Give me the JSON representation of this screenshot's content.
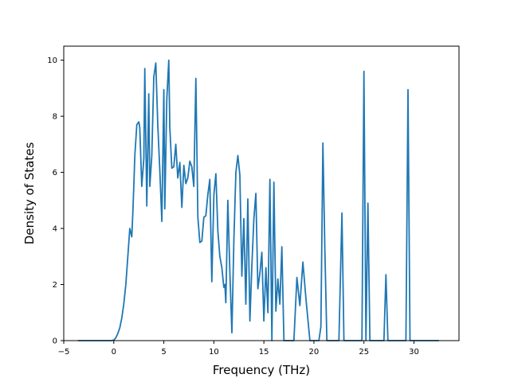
{
  "chart_data": {
    "type": "line",
    "title": "",
    "xlabel": "Frequency (THz)",
    "ylabel": "Density of States",
    "xlim": [
      -5.0,
      34.5
    ],
    "ylim": [
      0,
      10.5
    ],
    "xticks": [
      -5,
      0,
      5,
      10,
      15,
      20,
      25,
      30
    ],
    "xtick_labels": [
      "−5",
      "0",
      "5",
      "10",
      "15",
      "20",
      "25",
      "30"
    ],
    "yticks": [
      0,
      2,
      4,
      6,
      8,
      10
    ],
    "ytick_labels": [
      "0",
      "2",
      "4",
      "6",
      "8",
      "10"
    ],
    "grid": false,
    "legend": "none",
    "line_color": "#1f77b4",
    "series": [
      {
        "x": [
          -3.6,
          -0.2,
          0.0,
          0.2,
          0.4,
          0.6,
          0.8,
          1.0,
          1.2,
          1.4,
          1.6,
          1.8,
          1.9,
          2.0,
          2.1,
          2.3,
          2.5,
          2.6,
          2.8,
          3.0,
          3.1,
          3.3,
          3.5,
          3.6,
          3.8,
          4.0,
          4.2,
          4.4,
          4.6,
          4.8,
          5.0,
          5.1,
          5.3,
          5.5,
          5.6,
          5.8,
          6.0,
          6.2,
          6.4,
          6.6,
          6.8,
          7.0,
          7.2,
          7.4,
          7.6,
          7.8,
          8.0,
          8.2,
          8.4,
          8.6,
          8.8,
          9.0,
          9.2,
          9.4,
          9.6,
          9.8,
          10.0,
          10.2,
          10.4,
          10.6,
          10.8,
          11.0,
          11.1,
          11.2,
          11.4,
          11.6,
          11.8,
          12.0,
          12.2,
          12.4,
          12.6,
          12.8,
          13.0,
          13.2,
          13.4,
          13.6,
          13.8,
          14.0,
          14.2,
          14.4,
          14.6,
          14.8,
          15.0,
          15.2,
          15.4,
          15.6,
          15.8,
          16.0,
          16.2,
          16.4,
          16.6,
          16.8,
          17.0,
          17.2,
          18.0,
          18.3,
          18.6,
          18.9,
          19.2,
          19.6,
          20.5,
          20.7,
          20.9,
          21.1,
          21.3,
          21.6,
          22.5,
          22.8,
          23.0,
          24.8,
          25.0,
          25.2,
          25.4,
          25.6,
          25.8,
          27.0,
          27.2,
          27.4,
          29.2,
          29.4,
          29.6,
          32.5
        ],
        "y": [
          0,
          0,
          0.02,
          0.1,
          0.25,
          0.45,
          0.8,
          1.3,
          2.0,
          3.0,
          4.0,
          3.7,
          4.5,
          5.5,
          6.6,
          7.7,
          7.8,
          7.6,
          5.5,
          6.5,
          9.7,
          4.8,
          8.8,
          5.5,
          6.6,
          9.4,
          9.9,
          7.7,
          6.1,
          4.25,
          8.95,
          4.7,
          8.6,
          10.0,
          7.6,
          6.15,
          6.2,
          7.0,
          5.8,
          6.35,
          4.75,
          6.25,
          5.6,
          5.8,
          6.4,
          6.2,
          5.5,
          9.35,
          4.4,
          3.5,
          3.55,
          4.4,
          4.45,
          5.2,
          5.75,
          2.1,
          5.2,
          5.95,
          3.9,
          3.0,
          2.6,
          1.9,
          2.0,
          1.35,
          5.0,
          2.5,
          0.28,
          3.6,
          6.0,
          6.6,
          5.9,
          2.3,
          4.35,
          1.3,
          5.05,
          0.7,
          2.7,
          4.35,
          5.25,
          1.85,
          2.4,
          3.15,
          0.7,
          2.6,
          1.0,
          5.75,
          0,
          5.65,
          1.05,
          2.2,
          1.3,
          3.35,
          0,
          0,
          0,
          2.25,
          1.25,
          2.8,
          1.5,
          0,
          0,
          0.5,
          7.05,
          3.2,
          0,
          0,
          0,
          4.55,
          0,
          0,
          9.6,
          0,
          4.9,
          0,
          0,
          0,
          2.35,
          0,
          0,
          8.95,
          0,
          0
        ]
      }
    ]
  }
}
